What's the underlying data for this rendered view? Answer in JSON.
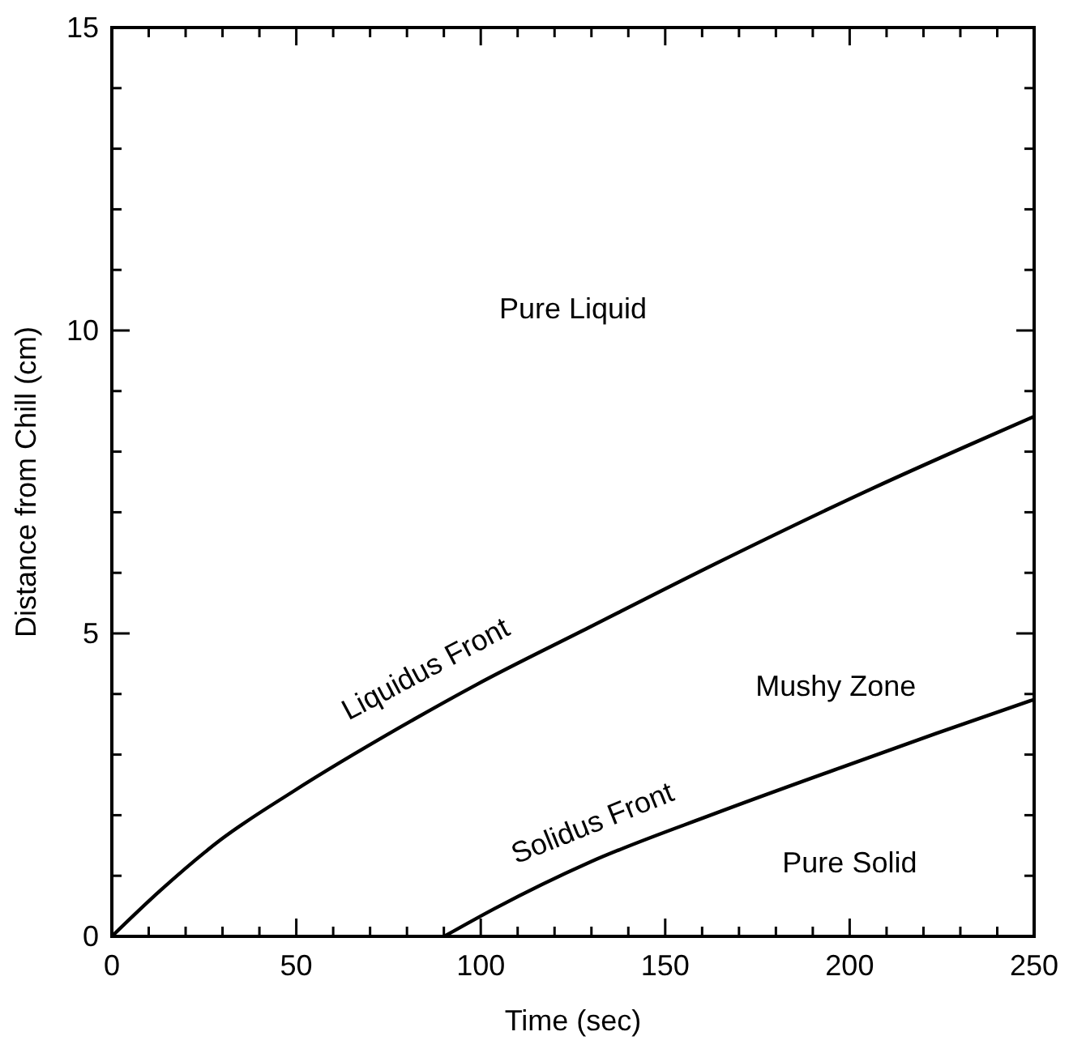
{
  "chart_data": {
    "type": "line",
    "xlabel": "Time (sec)",
    "ylabel": "Distance from Chill (cm)",
    "xlim": [
      0,
      250
    ],
    "ylim": [
      0,
      15
    ],
    "xticks": [
      0,
      {
        "value": 10,
        "label": null
      },
      {
        "value": 20,
        "label": null
      },
      {
        "value": 30,
        "label": null
      },
      {
        "value": 40,
        "label": null
      },
      50,
      {
        "value": 60,
        "label": null
      },
      {
        "value": 70,
        "label": null
      },
      {
        "value": 80,
        "label": null
      },
      {
        "value": 90,
        "label": null
      },
      100,
      {
        "value": 110,
        "label": null
      },
      {
        "value": 120,
        "label": null
      },
      {
        "value": 130,
        "label": null
      },
      {
        "value": 140,
        "label": null
      },
      150,
      {
        "value": 160,
        "label": null
      },
      {
        "value": 170,
        "label": null
      },
      {
        "value": 180,
        "label": null
      },
      {
        "value": 190,
        "label": null
      },
      200,
      {
        "value": 210,
        "label": null
      },
      {
        "value": 220,
        "label": null
      },
      {
        "value": 230,
        "label": null
      },
      {
        "value": 240,
        "label": null
      },
      250
    ],
    "yticks": [
      0,
      {
        "value": 1,
        "label": null
      },
      {
        "value": 2,
        "label": null
      },
      {
        "value": 3,
        "label": null
      },
      {
        "value": 4,
        "label": null
      },
      5,
      {
        "value": 6,
        "label": null
      },
      {
        "value": 7,
        "label": null
      },
      {
        "value": 8,
        "label": null
      },
      {
        "value": 9,
        "label": null
      },
      10,
      {
        "value": 11,
        "label": null
      },
      {
        "value": 12,
        "label": null
      },
      {
        "value": 13,
        "label": null
      },
      {
        "value": 14,
        "label": null
      },
      15
    ],
    "grid": false,
    "marker": "none",
    "line_style": "solid",
    "series": [
      {
        "color": "#000000",
        "x": [
          0,
          13.2,
          29.4,
          49.1,
          78.1,
          98.7,
          129.4,
          163.6,
          206.4,
          232,
          250
        ],
        "values": [
          0,
          0.76,
          1.59,
          2.39,
          3.45,
          4.15,
          5.1,
          6.15,
          7.4,
          8.1,
          8.58
        ]
      },
      {
        "color": "#000000",
        "x": [
          90.1,
          103.8,
          129.4,
          163.6,
          197.8,
          223.5,
          250
        ],
        "values": [
          0,
          0.46,
          1.22,
          2.03,
          2.79,
          3.35,
          3.91
        ]
      }
    ],
    "annotations": [
      "Pure Liquid",
      "Liquidus Front",
      "Mushy Zone",
      "Solidus Front",
      "Pure Solid"
    ]
  }
}
